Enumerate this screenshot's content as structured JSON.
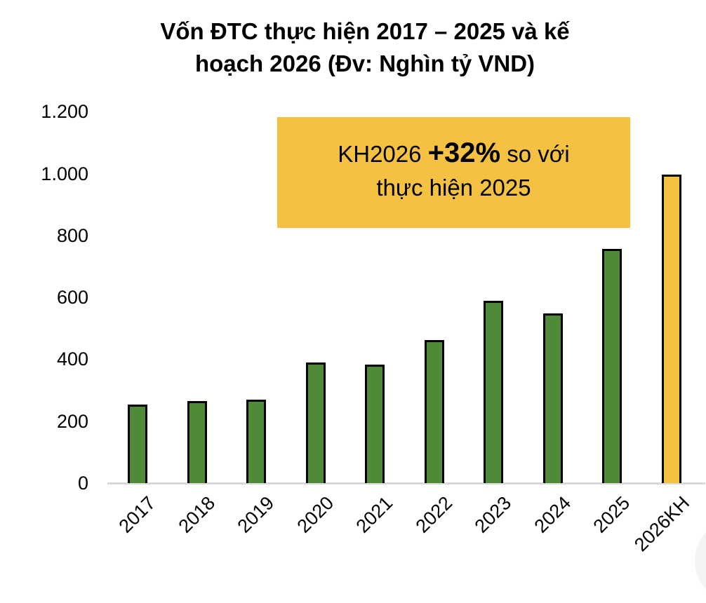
{
  "title_line1": "Vốn ĐTC thực hiện 2017 – 2025 và kế",
  "title_line2": "hoạch 2026 (Đv: Nghìn tỷ VND)",
  "callout": {
    "prefix": "KH2026 ",
    "highlight": "+32%",
    "suffix": " so với",
    "line2": "thực hiện 2025",
    "background": "#F4C142"
  },
  "colors": {
    "actual": "#4E8A38",
    "plan": "#F4C142",
    "bar_border": "#000000",
    "axis": "#D9D9D9"
  },
  "yticks": [
    "0",
    "200",
    "400",
    "600",
    "800",
    "1.000",
    "1.200"
  ],
  "chart_data": {
    "type": "bar",
    "title": "Vốn ĐTC thực hiện 2017 – 2025 và kế hoạch 2026 (Đv: Nghìn tỷ VND)",
    "xlabel": "",
    "ylabel": "Nghìn tỷ VND",
    "ylim": [
      0,
      1200
    ],
    "yticks": [
      0,
      200,
      400,
      600,
      800,
      1000,
      1200
    ],
    "grid": false,
    "legend": null,
    "categories": [
      "2017",
      "2018",
      "2019",
      "2020",
      "2021",
      "2022",
      "2023",
      "2024",
      "2025",
      "2026KH"
    ],
    "values": [
      254,
      265,
      270,
      390,
      383,
      462,
      589,
      548,
      756,
      997
    ],
    "bar_colors": [
      "#4E8A38",
      "#4E8A38",
      "#4E8A38",
      "#4E8A38",
      "#4E8A38",
      "#4E8A38",
      "#4E8A38",
      "#4E8A38",
      "#4E8A38",
      "#F4C142"
    ],
    "annotations": [
      "KH2026 +32% so với thực hiện 2025"
    ]
  }
}
